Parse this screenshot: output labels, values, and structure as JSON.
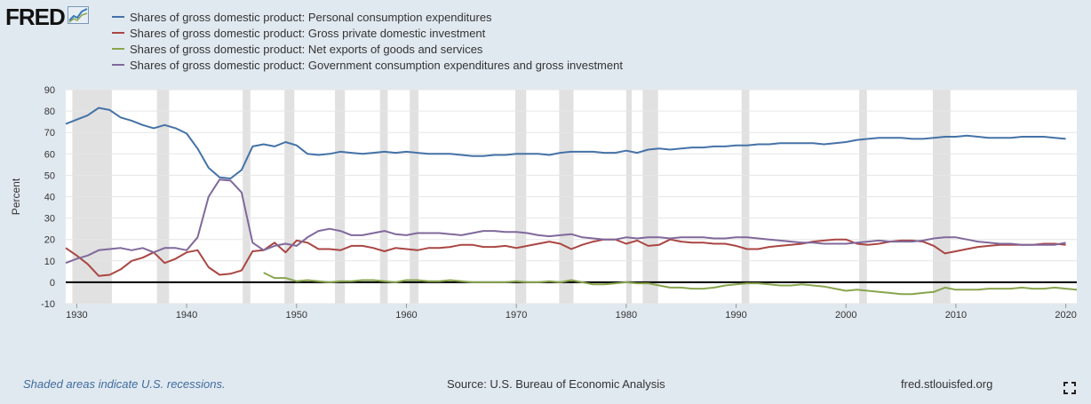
{
  "logo": {
    "text": "FRED"
  },
  "footer": {
    "recession_note": "Shaded areas indicate U.S. recessions.",
    "source": "Source: U.S. Bureau of Economic Analysis",
    "site": "fred.stlouisfed.org"
  },
  "icons": {
    "fullscreen": "expand-icon",
    "logo": "fred-chart-icon"
  },
  "chart_data": {
    "type": "line",
    "xlabel": "",
    "ylabel": "Percent",
    "xlim": [
      1929,
      2021
    ],
    "ylim": [
      -10,
      90
    ],
    "x_ticks": [
      1930,
      1940,
      1950,
      1960,
      1970,
      1980,
      1990,
      2000,
      2010,
      2020
    ],
    "y_ticks": [
      -10,
      0,
      10,
      20,
      30,
      40,
      50,
      60,
      70,
      80,
      90
    ],
    "grid": true,
    "legend_position": "top-left",
    "recessions": [
      [
        1929.6,
        1933.2
      ],
      [
        1937.3,
        1938.4
      ],
      [
        1945.1,
        1945.8
      ],
      [
        1948.9,
        1949.8
      ],
      [
        1953.5,
        1954.4
      ],
      [
        1957.6,
        1958.3
      ],
      [
        1960.3,
        1961.1
      ],
      [
        1969.9,
        1970.9
      ],
      [
        1973.9,
        1975.2
      ],
      [
        1980.0,
        1980.5
      ],
      [
        1981.5,
        1982.9
      ],
      [
        1990.5,
        1991.2
      ],
      [
        2001.2,
        2001.9
      ],
      [
        2007.9,
        2009.5
      ]
    ],
    "navigator_ticks": [
      "1940",
      "1960",
      "1980",
      "2000",
      "2020"
    ],
    "series": [
      {
        "name": "Shares of gross domestic product: Personal consumption expenditures",
        "color": "#4572a7",
        "x": [
          1929,
          1930,
          1931,
          1932,
          1933,
          1934,
          1935,
          1936,
          1937,
          1938,
          1939,
          1940,
          1941,
          1942,
          1943,
          1944,
          1945,
          1946,
          1947,
          1948,
          1949,
          1950,
          1951,
          1952,
          1953,
          1954,
          1955,
          1956,
          1957,
          1958,
          1959,
          1960,
          1961,
          1962,
          1963,
          1964,
          1965,
          1966,
          1967,
          1968,
          1969,
          1970,
          1971,
          1972,
          1973,
          1974,
          1975,
          1976,
          1977,
          1978,
          1979,
          1980,
          1981,
          1982,
          1983,
          1984,
          1985,
          1986,
          1987,
          1988,
          1989,
          1990,
          1991,
          1992,
          1993,
          1994,
          1995,
          1996,
          1997,
          1998,
          1999,
          2000,
          2001,
          2002,
          2003,
          2004,
          2005,
          2006,
          2007,
          2008,
          2009,
          2010,
          2011,
          2012,
          2013,
          2014,
          2015,
          2016,
          2017,
          2018,
          2019,
          2020
        ],
        "y": [
          74,
          76,
          78,
          81.5,
          80.5,
          77,
          75.5,
          73.5,
          72,
          73.5,
          72,
          69.5,
          62.5,
          53.5,
          49,
          48.5,
          52.5,
          63.5,
          64.5,
          63.5,
          65.5,
          64,
          60,
          59.5,
          60,
          61,
          60.5,
          60,
          60.5,
          61,
          60.5,
          61,
          60.5,
          60,
          60,
          60,
          59.5,
          59,
          59,
          59.5,
          59.5,
          60,
          60,
          60,
          59.5,
          60.5,
          61,
          61,
          61,
          60.5,
          60.5,
          61.5,
          60.5,
          62,
          62.5,
          62,
          62.5,
          63,
          63,
          63.5,
          63.5,
          64,
          64,
          64.5,
          64.5,
          65,
          65,
          65,
          65,
          64.5,
          65,
          65.5,
          66.5,
          67,
          67.5,
          67.5,
          67.5,
          67,
          67,
          67.5,
          68,
          68,
          68.5,
          68,
          67.5,
          67.5,
          67.5,
          68,
          68,
          68,
          67.5,
          67
        ]
      },
      {
        "name": "Shares of gross domestic product: Gross private domestic investment",
        "color": "#aa4643",
        "x": [
          1929,
          1930,
          1931,
          1932,
          1933,
          1934,
          1935,
          1936,
          1937,
          1938,
          1939,
          1940,
          1941,
          1942,
          1943,
          1944,
          1945,
          1946,
          1947,
          1948,
          1949,
          1950,
          1951,
          1952,
          1953,
          1954,
          1955,
          1956,
          1957,
          1958,
          1959,
          1960,
          1961,
          1962,
          1963,
          1964,
          1965,
          1966,
          1967,
          1968,
          1969,
          1970,
          1971,
          1972,
          1973,
          1974,
          1975,
          1976,
          1977,
          1978,
          1979,
          1980,
          1981,
          1982,
          1983,
          1984,
          1985,
          1986,
          1987,
          1988,
          1989,
          1990,
          1991,
          1992,
          1993,
          1994,
          1995,
          1996,
          1997,
          1998,
          1999,
          2000,
          2001,
          2002,
          2003,
          2004,
          2005,
          2006,
          2007,
          2008,
          2009,
          2010,
          2011,
          2012,
          2013,
          2014,
          2015,
          2016,
          2017,
          2018,
          2019,
          2020
        ],
        "y": [
          16,
          12.5,
          8.5,
          3,
          3.5,
          6,
          10,
          11.5,
          14,
          9,
          11,
          14,
          15,
          7,
          3.5,
          4,
          5.5,
          14.5,
          15,
          18.5,
          14,
          19.5,
          18.5,
          15.5,
          15.5,
          15,
          17,
          17,
          16,
          14.5,
          16,
          15.5,
          15,
          16,
          16,
          16.5,
          17.5,
          17.5,
          16.5,
          16.5,
          17,
          16,
          17,
          18,
          19,
          18,
          15.5,
          17.5,
          19,
          20,
          20,
          18,
          19.5,
          17,
          17.5,
          20,
          19,
          18.5,
          18.5,
          18,
          18,
          17,
          15.5,
          15.5,
          16.5,
          17,
          17.5,
          18,
          19,
          19.5,
          20,
          20,
          18,
          17.5,
          18,
          19,
          19.5,
          19.5,
          19,
          17,
          13.5,
          14.5,
          15.5,
          16.5,
          17,
          17.5,
          17.5,
          17.5,
          17.5,
          18,
          18,
          17.5
        ]
      },
      {
        "name": "Shares of gross domestic product: Net exports of goods and services",
        "color": "#89a54e",
        "x": [
          1947,
          1948,
          1949,
          1950,
          1951,
          1952,
          1953,
          1954,
          1955,
          1956,
          1957,
          1958,
          1959,
          1960,
          1961,
          1962,
          1963,
          1964,
          1965,
          1966,
          1967,
          1968,
          1969,
          1970,
          1971,
          1972,
          1973,
          1974,
          1975,
          1976,
          1977,
          1978,
          1979,
          1980,
          1981,
          1982,
          1983,
          1984,
          1985,
          1986,
          1987,
          1988,
          1989,
          1990,
          1991,
          1992,
          1993,
          1994,
          1995,
          1996,
          1997,
          1998,
          1999,
          2000,
          2001,
          2002,
          2003,
          2004,
          2005,
          2006,
          2007,
          2008,
          2009,
          2010,
          2011,
          2012,
          2013,
          2014,
          2015,
          2016,
          2017,
          2018,
          2019,
          2020,
          2021
        ],
        "y": [
          4.5,
          2,
          2,
          0.5,
          1,
          0.5,
          0,
          0.5,
          0.5,
          1,
          1,
          0.5,
          0,
          1,
          1,
          0.5,
          0.5,
          1,
          0.5,
          0,
          0,
          0,
          0,
          0.5,
          0,
          0,
          0.5,
          0,
          1,
          0,
          -1,
          -1,
          -0.5,
          0,
          -0.5,
          -0.5,
          -1.5,
          -2.5,
          -2.5,
          -3,
          -3,
          -2.5,
          -1.5,
          -1,
          -0.5,
          -0.5,
          -1,
          -1.5,
          -1.5,
          -1,
          -1.5,
          -2,
          -3,
          -4,
          -3.5,
          -4,
          -4.5,
          -5,
          -5.5,
          -5.5,
          -5,
          -4.5,
          -2.5,
          -3.5,
          -3.5,
          -3.5,
          -3,
          -3,
          -3,
          -2.5,
          -3,
          -3,
          -2.5,
          -3,
          -3.5
        ]
      },
      {
        "name": "Shares of gross domestic product: Government consumption expenditures and gross investment",
        "color": "#80699b",
        "x": [
          1929,
          1930,
          1931,
          1932,
          1933,
          1934,
          1935,
          1936,
          1937,
          1938,
          1939,
          1940,
          1941,
          1942,
          1943,
          1944,
          1945,
          1946,
          1947,
          1948,
          1949,
          1950,
          1951,
          1952,
          1953,
          1954,
          1955,
          1956,
          1957,
          1958,
          1959,
          1960,
          1961,
          1962,
          1963,
          1964,
          1965,
          1966,
          1967,
          1968,
          1969,
          1970,
          1971,
          1972,
          1973,
          1974,
          1975,
          1976,
          1977,
          1978,
          1979,
          1980,
          1981,
          1982,
          1983,
          1984,
          1985,
          1986,
          1987,
          1988,
          1989,
          1990,
          1991,
          1992,
          1993,
          1994,
          1995,
          1996,
          1997,
          1998,
          1999,
          2000,
          2001,
          2002,
          2003,
          2004,
          2005,
          2006,
          2007,
          2008,
          2009,
          2010,
          2011,
          2012,
          2013,
          2014,
          2015,
          2016,
          2017,
          2018,
          2019,
          2020
        ],
        "y": [
          9,
          11,
          12.5,
          15,
          15.5,
          16,
          15,
          16,
          14,
          16,
          16,
          15,
          21,
          40,
          48,
          47.5,
          42,
          18.5,
          15,
          17,
          18,
          17,
          21,
          24,
          25,
          24,
          22,
          22,
          23,
          24,
          22.5,
          22,
          23,
          23,
          23,
          22.5,
          22,
          23,
          24,
          24,
          23.5,
          23.5,
          23,
          22,
          21.5,
          22,
          22.5,
          21,
          20.5,
          20,
          20,
          21,
          20.5,
          21,
          21,
          20.5,
          21,
          21,
          21,
          20.5,
          20.5,
          21,
          21,
          20.5,
          20,
          19.5,
          19,
          18.5,
          18.5,
          18,
          18,
          18,
          18.5,
          19,
          19.5,
          19,
          19,
          19,
          19.5,
          20.5,
          21,
          21,
          20,
          19,
          18.5,
          18,
          18,
          17.5,
          17.5,
          17.5,
          17.5,
          18.5
        ]
      }
    ]
  }
}
